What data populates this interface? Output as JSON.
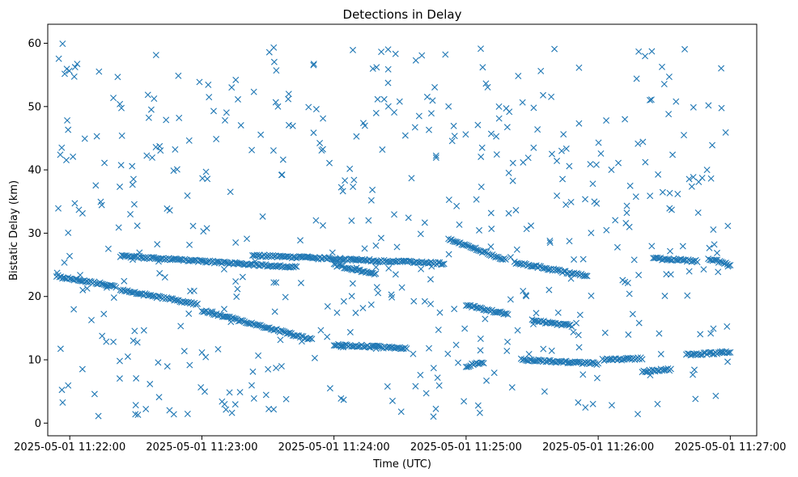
{
  "chart_data": {
    "type": "scatter",
    "title": "Detections in Delay",
    "xlabel": "Time (UTC)",
    "ylabel": "Bistatic Delay (km)",
    "marker": "x",
    "color": "#1f77b4",
    "grid": false,
    "legend": "none",
    "x_unit": "time",
    "xlim": [
      "2025-05-01 11:21:50",
      "2025-05-01 11:27:12"
    ],
    "ylim": [
      -2,
      63
    ],
    "xticks": [
      "2025-05-01 11:22:00",
      "2025-05-01 11:23:00",
      "2025-05-01 11:24:00",
      "2025-05-01 11:25:00",
      "2025-05-01 11:26:00",
      "2025-05-01 11:27:00"
    ],
    "yticks": [
      0,
      10,
      20,
      30,
      40,
      50,
      60
    ],
    "tracks": [
      {
        "x_start": "2025-05-01 11:21:54",
        "x_end": "2025-05-01 11:22:21",
        "y_start": 23.2,
        "y_end": 21.6
      },
      {
        "x_start": "2025-05-01 11:22:23",
        "x_end": "2025-05-01 11:23:43",
        "y_start": 26.4,
        "y_end": 24.6
      },
      {
        "x_start": "2025-05-01 11:22:23",
        "x_end": "2025-05-01 11:22:58",
        "y_start": 21.0,
        "y_end": 18.8
      },
      {
        "x_start": "2025-05-01 11:23:00",
        "x_end": "2025-05-01 11:23:50",
        "y_start": 17.8,
        "y_end": 13.2
      },
      {
        "x_start": "2025-05-01 11:23:23",
        "x_end": "2025-05-01 11:24:50",
        "y_start": 26.5,
        "y_end": 25.2
      },
      {
        "x_start": "2025-05-01 11:24:00",
        "x_end": "2025-05-01 11:24:19",
        "y_start": 25.0,
        "y_end": 23.5
      },
      {
        "x_start": "2025-05-01 11:24:00",
        "x_end": "2025-05-01 11:24:33",
        "y_start": 12.4,
        "y_end": 11.8
      },
      {
        "x_start": "2025-05-01 11:24:52",
        "x_end": "2025-05-01 11:25:18",
        "y_start": 29.0,
        "y_end": 25.8
      },
      {
        "x_start": "2025-05-01 11:25:00",
        "x_end": "2025-05-01 11:25:19",
        "y_start": 18.6,
        "y_end": 17.2
      },
      {
        "x_start": "2025-05-01 11:25:00",
        "x_end": "2025-05-01 11:25:08",
        "y_start": 9.0,
        "y_end": 9.6
      },
      {
        "x_start": "2025-05-01 11:25:22",
        "x_end": "2025-05-01 11:25:55",
        "y_start": 25.4,
        "y_end": 23.2
      },
      {
        "x_start": "2025-05-01 11:25:30",
        "x_end": "2025-05-01 11:25:48",
        "y_start": 16.2,
        "y_end": 15.4
      },
      {
        "x_start": "2025-05-01 11:25:25",
        "x_end": "2025-05-01 11:26:00",
        "y_start": 10.0,
        "y_end": 9.4
      },
      {
        "x_start": "2025-05-01 11:26:02",
        "x_end": "2025-05-01 11:26:20",
        "y_start": 10.0,
        "y_end": 10.2
      },
      {
        "x_start": "2025-05-01 11:26:20",
        "x_end": "2025-05-01 11:26:33",
        "y_start": 8.2,
        "y_end": 8.5
      },
      {
        "x_start": "2025-05-01 11:26:25",
        "x_end": "2025-05-01 11:26:45",
        "y_start": 26.0,
        "y_end": 25.6
      },
      {
        "x_start": "2025-05-01 11:26:40",
        "x_end": "2025-05-01 11:27:00",
        "y_start": 10.8,
        "y_end": 11.2
      },
      {
        "x_start": "2025-05-01 11:26:50",
        "x_end": "2025-05-01 11:27:00",
        "y_start": 26.0,
        "y_end": 25.0
      }
    ],
    "scatter_seed": 20250501,
    "scatter_count": 520,
    "noise_range": {
      "x": [
        "2025-05-01 11:21:54",
        "2025-05-01 11:27:00"
      ],
      "y": [
        1,
        60
      ]
    }
  }
}
